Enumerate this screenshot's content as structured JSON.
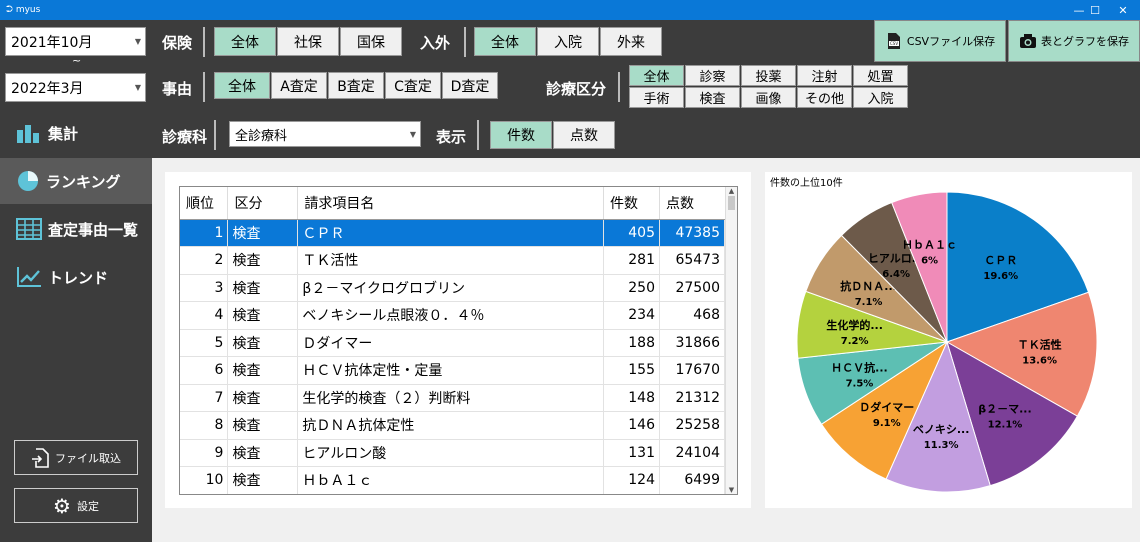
{
  "window": {
    "title": "myus",
    "minimize": "—",
    "maximize": "☐",
    "close": "✕"
  },
  "period": {
    "from": "2021年10月",
    "tilde": "~",
    "to": "2022年3月"
  },
  "insurance": {
    "label": "保険",
    "options": [
      "全体",
      "社保",
      "国保"
    ],
    "selected": 0
  },
  "inout": {
    "label": "入外",
    "options": [
      "全体",
      "入院",
      "外来"
    ],
    "selected": 0
  },
  "reason": {
    "label": "事由",
    "options": [
      "全体",
      "A査定",
      "B査定",
      "C査定",
      "D査定"
    ],
    "selected": 0
  },
  "category": {
    "label": "診療区分",
    "options": [
      "全体",
      "診察",
      "投薬",
      "注射",
      "処置",
      "手術",
      "検査",
      "画像",
      "その他",
      "入院"
    ],
    "selected": 0
  },
  "dept": {
    "label": "診療科",
    "value": "全診療科"
  },
  "display": {
    "label": "表示",
    "options": [
      "件数",
      "点数"
    ],
    "selected": 0
  },
  "actions": {
    "csv": "CSVファイル保存",
    "image": "表とグラフを保存"
  },
  "nav": {
    "items": [
      {
        "label": "集計",
        "icon": "bar-chart-icon"
      },
      {
        "label": "ランキング",
        "icon": "pie-chart-icon"
      },
      {
        "label": "査定事由一覧",
        "icon": "table-icon"
      },
      {
        "label": "トレンド",
        "icon": "line-chart-icon"
      }
    ],
    "selected": 1
  },
  "footer": {
    "import": "ファイル取込",
    "settings": "設定"
  },
  "table": {
    "headers": [
      "順位",
      "区分",
      "請求項目名",
      "件数",
      "点数"
    ],
    "rows": [
      [
        "1",
        "検査",
        "ＣＰＲ",
        "405",
        "47385"
      ],
      [
        "2",
        "検査",
        "ＴＫ活性",
        "281",
        "65473"
      ],
      [
        "3",
        "検査",
        "β２－マイクログロブリン",
        "250",
        "27500"
      ],
      [
        "4",
        "検査",
        "ベノキシール点眼液０．４％",
        "234",
        "468"
      ],
      [
        "5",
        "検査",
        "Ｄダイマー",
        "188",
        "31866"
      ],
      [
        "6",
        "検査",
        "ＨＣＶ抗体定性・定量",
        "155",
        "17670"
      ],
      [
        "7",
        "検査",
        "生化学的検査（２）判断料",
        "148",
        "21312"
      ],
      [
        "8",
        "検査",
        "抗ＤＮＡ抗体定性",
        "146",
        "25258"
      ],
      [
        "9",
        "検査",
        "ヒアルロン酸",
        "131",
        "24104"
      ],
      [
        "10",
        "検査",
        "ＨｂＡ１ｃ",
        "124",
        "6499"
      ]
    ],
    "selected_row": 0
  },
  "chart_data": {
    "type": "pie",
    "title": "件数の上位10件",
    "slices": [
      {
        "label": "ＣＰＲ",
        "pct_label": "19.6%",
        "value": 19.6,
        "color": "#0a7fc9"
      },
      {
        "label": "ＴＫ活性",
        "pct_label": "13.6%",
        "value": 13.6,
        "color": "#ef8670"
      },
      {
        "label": "β２－マ...",
        "pct_label": "12.1%",
        "value": 12.1,
        "color": "#7b3f97"
      },
      {
        "label": "ベノキシ...",
        "pct_label": "11.3%",
        "value": 11.3,
        "color": "#c29ee0"
      },
      {
        "label": "Ｄダイマー",
        "pct_label": "9.1%",
        "value": 9.1,
        "color": "#f7a234"
      },
      {
        "label": "ＨＣＶ抗...",
        "pct_label": "7.5%",
        "value": 7.5,
        "color": "#5dbfb3"
      },
      {
        "label": "生化学的...",
        "pct_label": "7.2%",
        "value": 7.2,
        "color": "#b4d23e"
      },
      {
        "label": "抗ＤＮＡ...",
        "pct_label": "7.1%",
        "value": 7.1,
        "color": "#c19a6b"
      },
      {
        "label": "ヒアルロ...",
        "pct_label": "6.4%",
        "value": 6.4,
        "color": "#6d5a4a"
      },
      {
        "label": "ＨｂＡ１ｃ",
        "pct_label": "6%",
        "value": 6.0,
        "color": "#f08bb8"
      }
    ]
  }
}
